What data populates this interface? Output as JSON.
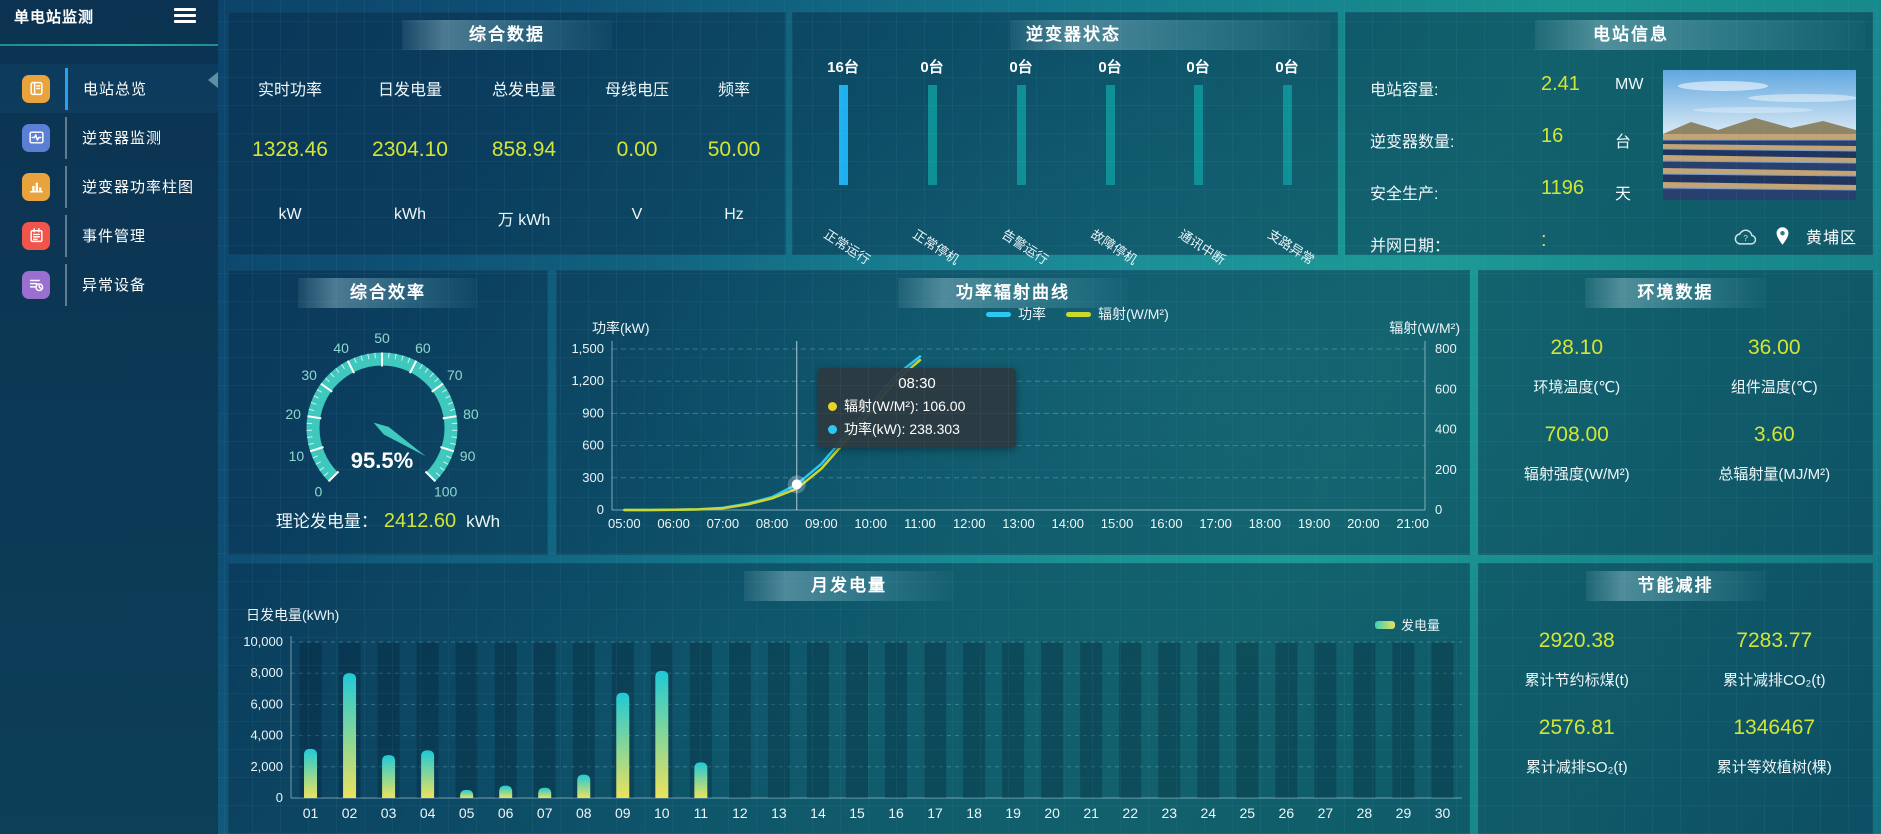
{
  "colors": {
    "value_accent": "#d3e534",
    "bar_highlight": "#1fb0f0",
    "bar_normal": "#0f9096",
    "gauge": "#3fc8bd",
    "power_line": "#2ec7f4",
    "radiation_line": "#ccd82e",
    "active_menu": "#2aa0f0"
  },
  "sidebar": {
    "title": "单电站监测",
    "items": [
      {
        "id": "station-overview",
        "label": "电站总览",
        "icon": "station-overview-icon",
        "color": "#e8a33d",
        "active": true
      },
      {
        "id": "inverter-monitor",
        "label": "逆变器监测",
        "icon": "inverter-monitor-icon",
        "color": "#5b7fd4",
        "active": false
      },
      {
        "id": "inverter-power-chart",
        "label": "逆变器功率柱图",
        "icon": "inverter-power-bars-icon",
        "color": "#e8a33d",
        "active": false
      },
      {
        "id": "event-management",
        "label": "事件管理",
        "icon": "event-management-icon",
        "color": "#f0544a",
        "active": false
      },
      {
        "id": "abnormal-devices",
        "label": "异常设备",
        "icon": "abnormal-devices-icon",
        "color": "#9b6fd0",
        "active": false
      }
    ]
  },
  "panels": {
    "overview": {
      "title": "综合数据",
      "stats": [
        {
          "label": "实时功率",
          "value": "1328.46",
          "unit": "kW"
        },
        {
          "label": "日发电量",
          "value": "2304.10",
          "unit": "kWh"
        },
        {
          "label": "总发电量",
          "value": "858.94",
          "unit": "万 kWh"
        },
        {
          "label": "母线电压",
          "value": "0.00",
          "unit": "V"
        },
        {
          "label": "频率",
          "value": "50.00",
          "unit": "Hz"
        }
      ]
    },
    "inverter_status": {
      "title": "逆变器状态",
      "bars": [
        {
          "count": "16台",
          "label": "正常运行",
          "color": "#1fb0f0"
        },
        {
          "count": "0台",
          "label": "正常停机",
          "color": "#0f9096"
        },
        {
          "count": "0台",
          "label": "告警运行",
          "color": "#0f9096"
        },
        {
          "count": "0台",
          "label": "故障停机",
          "color": "#0f9096"
        },
        {
          "count": "0台",
          "label": "通讯中断",
          "color": "#0f9096"
        },
        {
          "count": "0台",
          "label": "支路异常",
          "color": "#0f9096"
        }
      ]
    },
    "station_info": {
      "title": "电站信息",
      "rows": [
        {
          "label": "电站容量:",
          "value": "2.41",
          "unit": "MW"
        },
        {
          "label": "逆变器数量:",
          "value": "16",
          "unit": "台"
        },
        {
          "label": "安全生产:",
          "value": "1196",
          "unit": "天"
        },
        {
          "label": "并网日期：",
          "value": ":",
          "unit": ""
        }
      ],
      "weather_icon": "cloud-unknown-icon",
      "location_icon": "location-pin-icon",
      "location": "黄埔区"
    },
    "efficiency": {
      "title": "综合效率",
      "theory_label": "理论发电量：",
      "theory_value": "2412.60",
      "theory_unit": "kWh"
    },
    "curve": {
      "title": "功率辐射曲线"
    },
    "environment": {
      "title": "环境数据",
      "metrics": [
        {
          "value": "28.10",
          "label": "环境温度(℃)"
        },
        {
          "value": "36.00",
          "label": "组件温度(℃)"
        },
        {
          "value": "708.00",
          "label": "辐射强度(W/M²)"
        },
        {
          "value": "3.60",
          "label": "总辐射量(MJ/M²)"
        }
      ]
    },
    "monthly": {
      "title": "月发电量"
    },
    "saving": {
      "title": "节能减排",
      "metrics": [
        {
          "value": "2920.38",
          "label": "累计节约标煤(t)"
        },
        {
          "value": "7283.77",
          "label": "累计减排CO₂(t)"
        },
        {
          "value": "2576.81",
          "label": "累计减排SO₂(t)"
        },
        {
          "value": "1346467",
          "label": "累计等效植树(棵)"
        }
      ]
    }
  },
  "chart_data": [
    {
      "id": "efficiency-gauge",
      "type": "gauge",
      "title": "综合效率",
      "min": 0,
      "max": 100,
      "tick_interval": 10,
      "value": 95.5,
      "display": "95.5%",
      "color": "#3fc8bd"
    },
    {
      "id": "power-radiation-curve",
      "type": "line",
      "title": "功率辐射曲线",
      "x_hours": [
        5,
        5.5,
        6,
        6.5,
        7,
        7.5,
        8,
        8.5,
        9,
        9.5,
        10,
        10.5,
        11
      ],
      "x_axis": {
        "slots": 33,
        "hour_labels": [
          "05:00",
          "06:00",
          "07:00",
          "08:00",
          "09:00",
          "10:00",
          "11:00",
          "12:00",
          "13:00",
          "14:00",
          "15:00",
          "16:00",
          "17:00",
          "18:00",
          "19:00",
          "20:00",
          "21:00"
        ]
      },
      "series": [
        {
          "name": "功率",
          "axis": "left",
          "color": "#2ec7f4",
          "values": [
            0,
            0,
            2,
            6,
            20,
            60,
            120,
            238.303,
            430,
            700,
            980,
            1250,
            1430
          ]
        },
        {
          "name": "辐射(W/M²)",
          "axis": "right",
          "color": "#ccd82e",
          "values": [
            0,
            0,
            1,
            3,
            9,
            28,
            58,
            106,
            205,
            345,
            490,
            640,
            745
          ]
        }
      ],
      "left_axis": {
        "label": "功率(kW)",
        "min": 0,
        "max": 1500,
        "ticks": [
          0,
          300,
          600,
          900,
          1200,
          1500
        ]
      },
      "right_axis": {
        "label": "辐射(W/M²)",
        "min": 0,
        "max": 800,
        "ticks": [
          0,
          200,
          400,
          600,
          800
        ]
      },
      "tooltip": {
        "index": 7,
        "time": "08:30",
        "items": [
          {
            "name": "辐射(W/M²)",
            "value": "106.00",
            "color": "#e3d32b"
          },
          {
            "name": "功率(kW)",
            "value": "238.303",
            "color": "#2ec7f4"
          }
        ]
      }
    },
    {
      "id": "monthly-generation",
      "type": "bar",
      "title": "月发电量",
      "ylabel": "日发电量(kWh)",
      "legend": "发电量",
      "categories": [
        "01",
        "02",
        "03",
        "04",
        "05",
        "06",
        "07",
        "08",
        "09",
        "10",
        "11",
        "12",
        "13",
        "14",
        "15",
        "16",
        "17",
        "18",
        "19",
        "20",
        "21",
        "22",
        "23",
        "24",
        "25",
        "26",
        "27",
        "28",
        "29",
        "30"
      ],
      "values": [
        3150,
        8000,
        2750,
        3050,
        520,
        790,
        660,
        1500,
        6750,
        8150,
        2280,
        0,
        0,
        0,
        0,
        0,
        0,
        0,
        0,
        0,
        0,
        0,
        0,
        0,
        0,
        0,
        0,
        0,
        0,
        0
      ],
      "ylim": [
        0,
        10000
      ],
      "ytick_interval": 2000,
      "bar_gradient": [
        "#ece25c",
        "#1fc9d6"
      ]
    }
  ]
}
